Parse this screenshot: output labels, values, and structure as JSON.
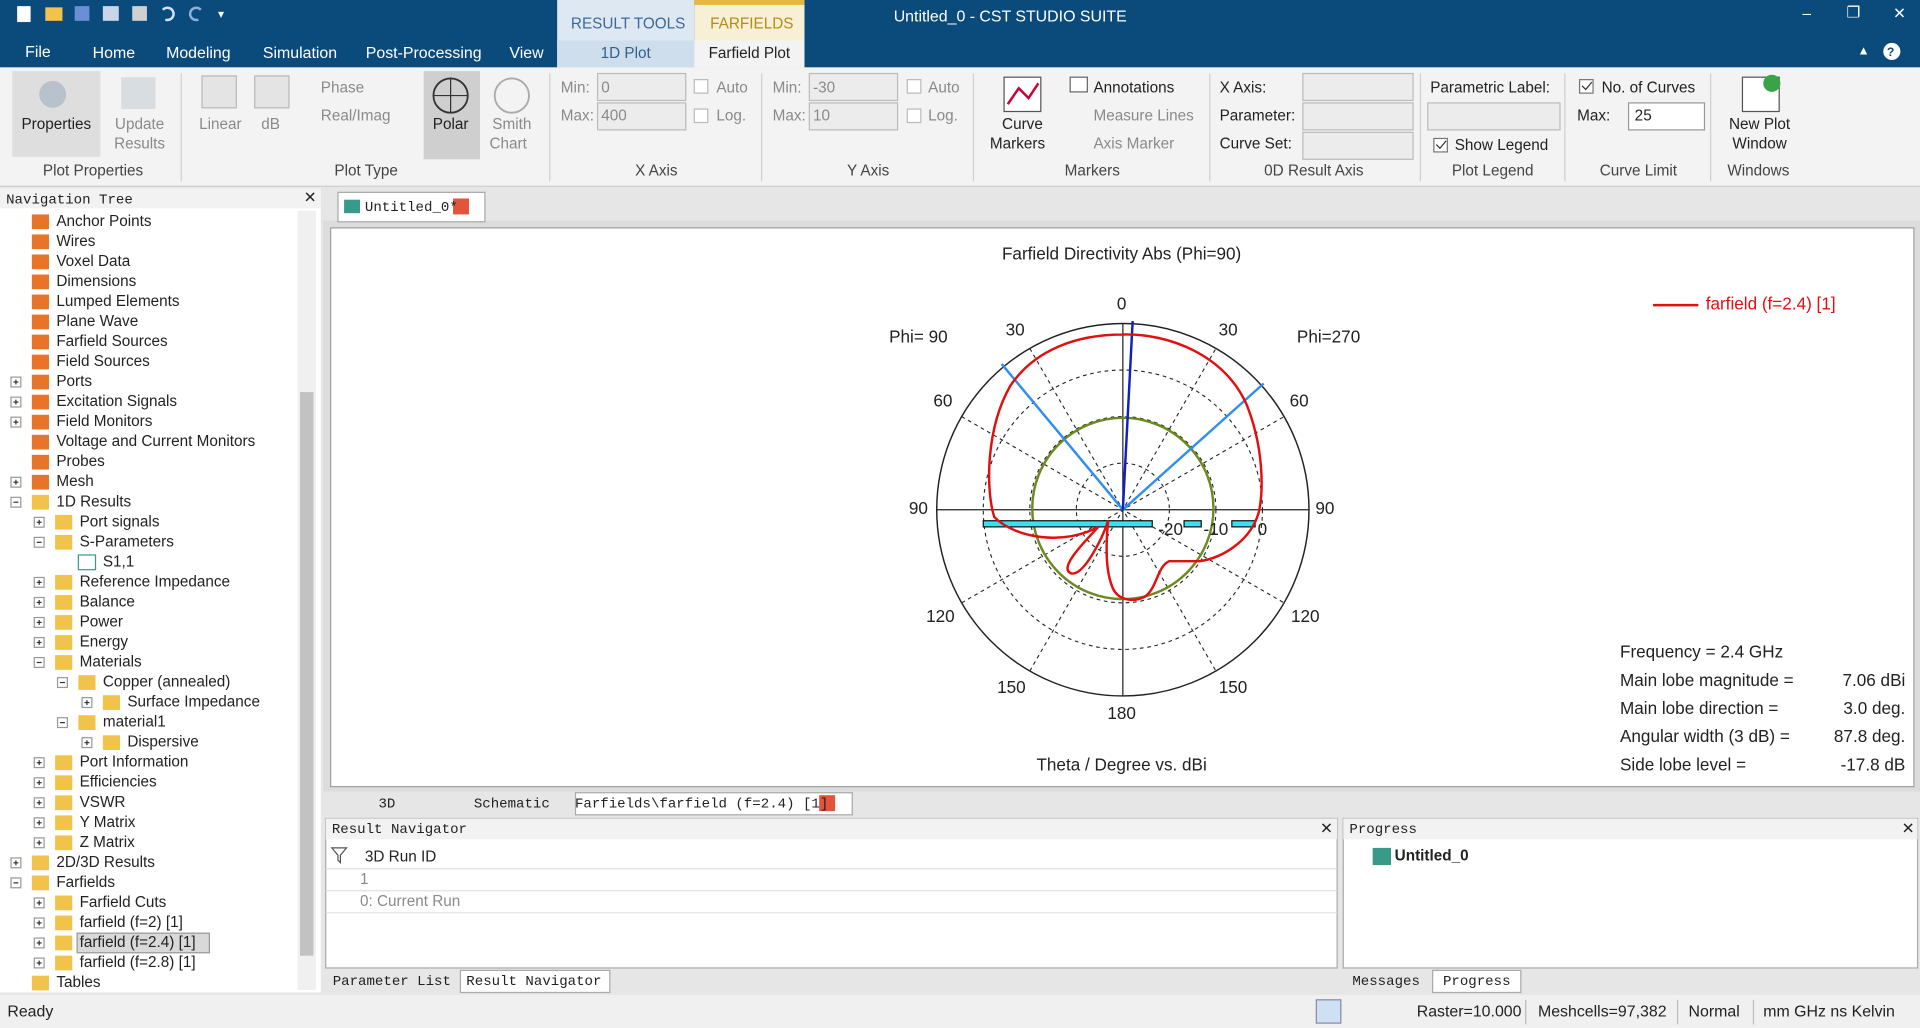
{
  "title_bar": {
    "title": "Untitled_0 - CST STUDIO SUITE",
    "context_tabs": [
      "RESULT TOOLS",
      "FARFIELDS"
    ],
    "context_subtabs": [
      "1D Plot",
      "Farfield Plot"
    ]
  },
  "menu": {
    "tabs": [
      "File",
      "Home",
      "Modeling",
      "Simulation",
      "Post-Processing",
      "View"
    ]
  },
  "ribbon": {
    "plot_properties": {
      "group": "Plot Properties",
      "properties": "Properties",
      "update": [
        "Update",
        "Results"
      ]
    },
    "plot_type": {
      "group": "Plot Type",
      "linear": "Linear",
      "db": "dB",
      "phase": "Phase",
      "real_imag": "Real/Imag",
      "polar": "Polar",
      "smith": [
        "Smith",
        "Chart"
      ]
    },
    "x_axis": {
      "group": "X Axis",
      "min_label": "Min:",
      "min": "0",
      "max_label": "Max:",
      "max": "400",
      "auto": "Auto",
      "log": "Log."
    },
    "y_axis": {
      "group": "Y Axis",
      "min_label": "Min:",
      "min": "-30",
      "max_label": "Max:",
      "max": "10",
      "auto": "Auto",
      "log": "Log."
    },
    "markers": {
      "group": "Markers",
      "curve_markers": [
        "Curve",
        "Markers"
      ],
      "annotations": "Annotations",
      "measure_lines": "Measure Lines",
      "axis_marker": "Axis Marker"
    },
    "result_axis": {
      "group": "0D Result Axis",
      "x_axis": "X Axis:",
      "parameter": "Parameter:",
      "curve_set": "Curve Set:"
    },
    "plot_legend": {
      "group": "Plot Legend",
      "parametric_label": "Parametric Label:",
      "show_legend": "Show Legend"
    },
    "curve_limit": {
      "group": "Curve Limit",
      "no_of_curves": "No. of Curves",
      "max_label": "Max:",
      "max": "25"
    },
    "windows": {
      "group": "Windows",
      "new_plot": [
        "New Plot",
        "Window"
      ]
    }
  },
  "nav_tree": {
    "header": "Navigation Tree",
    "items": [
      "Anchor Points",
      "Wires",
      "Voxel Data",
      "Dimensions",
      "Lumped Elements",
      "Plane Wave",
      "Farfield Sources",
      "Field Sources",
      "Ports",
      "Excitation Signals",
      "Field Monitors",
      "Voltage and Current Monitors",
      "Probes",
      "Mesh",
      "1D Results",
      "Port signals",
      "S-Parameters",
      "S1,1",
      "Reference Impedance",
      "Balance",
      "Power",
      "Energy",
      "Materials",
      "Copper (annealed)",
      "Surface Impedance",
      "material1",
      "Dispersive",
      "Port Information",
      "Efficiencies",
      "VSWR",
      "Y Matrix",
      "Z Matrix",
      "2D/3D Results",
      "Farfields",
      "Farfield Cuts",
      "farfield (f=2) [1]",
      "farfield (f=2.4) [1]",
      "farfield (f=2.8) [1]",
      "Tables"
    ]
  },
  "document_tab": "Untitled_0*",
  "plot": {
    "title": "Farfield Directivity Abs (Phi=90)",
    "legend": "farfield (f=2.4) [1]",
    "phi_left": "Phi= 90",
    "phi_right": "Phi=270",
    "angle_labels": [
      "0",
      "30",
      "30",
      "60",
      "60",
      "90",
      "90",
      "120",
      "120",
      "150",
      "150",
      "180"
    ],
    "radial_labels": [
      "-20",
      "-10",
      "0"
    ],
    "x_label": "Theta / Degree vs. dBi",
    "info": [
      [
        "Frequency = 2.4 GHz",
        ""
      ],
      [
        "Main lobe magnitude =",
        "7.06 dBi"
      ],
      [
        "Main lobe direction =",
        "3.0 deg."
      ],
      [
        "Angular width (3 dB) =",
        "87.8 deg."
      ],
      [
        "Side lobe level =",
        "-17.8 dB"
      ]
    ]
  },
  "view_tabs": [
    "3D",
    "Schematic",
    "Farfields\\farfield (f=2.4) [1]"
  ],
  "result_navigator": {
    "header": "Result Navigator",
    "column": "3D Run ID",
    "rows": [
      "1",
      "0: Current Run"
    ]
  },
  "progress": {
    "header": "Progress",
    "item": "Untitled_0"
  },
  "bottom_tabs_left": [
    "Parameter List",
    "Result Navigator"
  ],
  "bottom_tabs_right": [
    "Messages",
    "Progress"
  ],
  "status": {
    "ready": "Ready",
    "raster": "Raster=10.000",
    "meshcells": "Meshcells=97,382",
    "mode": "Normal",
    "units": "mm GHz ns Kelvin"
  }
}
